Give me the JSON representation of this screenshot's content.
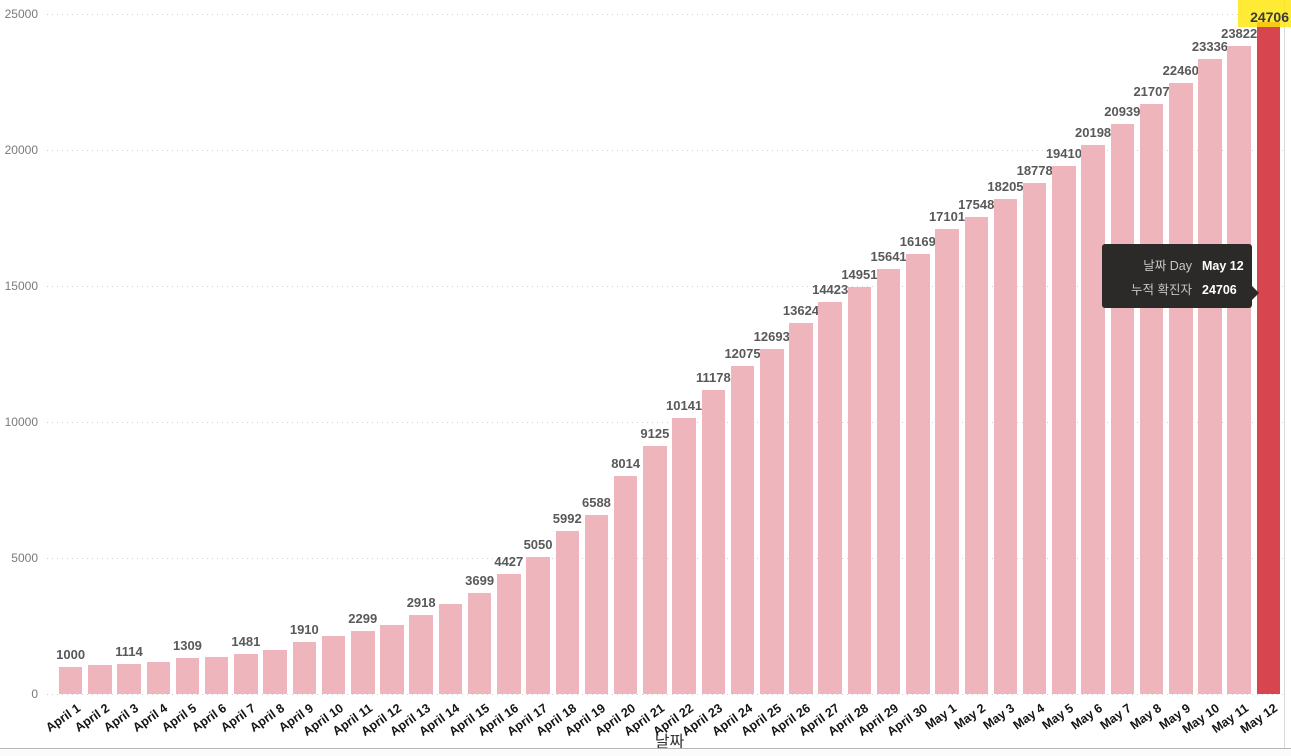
{
  "chart_data": {
    "type": "bar",
    "title": "",
    "xlabel": "날짜",
    "ylabel": "",
    "ylim": [
      0,
      25000
    ],
    "yticks": [
      0,
      5000,
      10000,
      15000,
      20000,
      25000
    ],
    "grid": "dotted-horizontal",
    "legend": "none",
    "categories": [
      "April 1",
      "April 2",
      "April 3",
      "April 4",
      "April 5",
      "April 6",
      "April 7",
      "April 8",
      "April 9",
      "April 10",
      "April 11",
      "April 12",
      "April 13",
      "April 14",
      "April 15",
      "April 16",
      "April 17",
      "April 18",
      "April 19",
      "April 20",
      "April 21",
      "April 22",
      "April 23",
      "April 24",
      "April 25",
      "April 26",
      "April 27",
      "April 28",
      "April 29",
      "April 30",
      "May 1",
      "May 2",
      "May 3",
      "May 4",
      "May 5",
      "May 6",
      "May 7",
      "May 8",
      "May 9",
      "May 10",
      "May 11",
      "May 12"
    ],
    "values": [
      1000,
      1050,
      1114,
      1190,
      1309,
      1370,
      1481,
      1630,
      1910,
      2120,
      2299,
      2550,
      2918,
      3300,
      3699,
      4427,
      5050,
      5992,
      6588,
      8014,
      9125,
      10141,
      11178,
      12075,
      12693,
      13624,
      14423,
      14951,
      15641,
      16169,
      17101,
      17548,
      18205,
      18778,
      19410,
      20198,
      20939,
      21707,
      22460,
      23336,
      23822,
      24706
    ],
    "data_labels": [
      1000,
      null,
      1114,
      null,
      1309,
      null,
      1481,
      null,
      1910,
      null,
      2299,
      null,
      2918,
      null,
      3699,
      4427,
      5050,
      5992,
      6588,
      8014,
      9125,
      10141,
      11178,
      12075,
      12693,
      13624,
      14423,
      14951,
      15641,
      16169,
      17101,
      17548,
      18205,
      18778,
      19410,
      20198,
      20939,
      21707,
      22460,
      23336,
      23822,
      24706
    ],
    "unlabeled_values_estimated_indices": [
      1,
      3,
      5,
      7,
      9,
      11,
      13
    ],
    "highlight_index": 41,
    "colors": {
      "bar": "#efb5bc",
      "highlight_bar": "#d7454f",
      "data_label": "#595959",
      "y_axis_label": "#7a7a7a",
      "x_axis_label": "#151515",
      "gridline": "#cfcfcf",
      "highlight_label_bg": "#ffe60a"
    }
  },
  "highlight_label": {
    "text": "24706"
  },
  "tooltip": {
    "bg": "#2b2a29",
    "label_color": "#c8c6c4",
    "value_color": "#ffffff",
    "rows": [
      {
        "label": "날짜 Day",
        "value": "May 12"
      },
      {
        "label": "누적 확진자",
        "value": "24706"
      }
    ]
  }
}
